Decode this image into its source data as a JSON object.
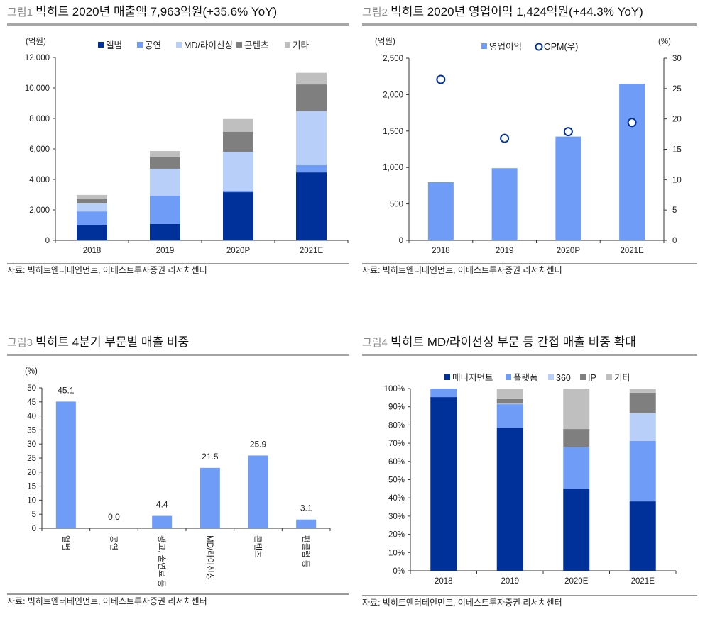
{
  "source_note": "자료: 빅히트엔터테인먼트, 이베스트투자증권 리서치센터",
  "colors": {
    "album": "#00309a",
    "concert": "#6f9cf7",
    "md": "#b8cffa",
    "content": "#7f7f7f",
    "etc": "#bfbfbf",
    "bar": "#6f9cf7",
    "opm": "#00309a"
  },
  "chart_data": [
    {
      "type": "bar",
      "stacked": true,
      "fig_label": "그림1",
      "title": "빅히트 2020년 매출액 7,963억원(+35.6% YoY)",
      "ylabel": "(억원)",
      "ylim": [
        0,
        12000
      ],
      "yticks": [
        "0",
        "2,000",
        "4,000",
        "6,000",
        "8,000",
        "10,000",
        "12,000"
      ],
      "categories": [
        "2018",
        "2019",
        "2020P",
        "2021E"
      ],
      "legend_position": "top",
      "series": [
        {
          "name": "앨범",
          "color": "#00309a",
          "values": [
            1020,
            1070,
            3160,
            4460
          ]
        },
        {
          "name": "공연",
          "color": "#6f9cf7",
          "values": [
            880,
            1860,
            90,
            470
          ]
        },
        {
          "name": "MD/라이선싱",
          "color": "#b8cffa",
          "values": [
            520,
            1770,
            2560,
            3550
          ]
        },
        {
          "name": "콘텐츠",
          "color": "#7f7f7f",
          "values": [
            320,
            750,
            1320,
            1750
          ]
        },
        {
          "name": "기타",
          "color": "#bfbfbf",
          "values": [
            240,
            410,
            833,
            760
          ]
        }
      ]
    },
    {
      "type": "bar+scatter",
      "fig_label": "그림2",
      "title": "빅히트 2020년 영업이익 1,424억원(+44.3% YoY)",
      "ylabel": "(억원)",
      "y2label": "(%)",
      "ylim": [
        0,
        2500
      ],
      "y2lim": [
        0,
        30
      ],
      "yticks": [
        "0",
        "500",
        "1,000",
        "1,500",
        "2,000",
        "2,500"
      ],
      "y2ticks": [
        "0",
        "5",
        "10",
        "15",
        "20",
        "25",
        "30"
      ],
      "categories": [
        "2018",
        "2019",
        "2020P",
        "2021E"
      ],
      "legend_position": "top",
      "series": [
        {
          "name": "영업이익",
          "color": "#6f9cf7",
          "axis": "left",
          "values": [
            798,
            990,
            1424,
            2150
          ]
        },
        {
          "name": "OPM(우)",
          "color": "#00309a",
          "axis": "right",
          "values": [
            26.5,
            16.8,
            17.9,
            19.4
          ]
        }
      ]
    },
    {
      "type": "bar",
      "fig_label": "그림3",
      "title": "빅히트 4분기 부문별 매출 비중",
      "ylabel": "(%)",
      "ylim": [
        0,
        50
      ],
      "yticks": [
        "0",
        "5",
        "10",
        "15",
        "20",
        "25",
        "30",
        "35",
        "40",
        "45",
        "50"
      ],
      "categories": [
        "앨범",
        "공연",
        "광고, 출연료 등",
        "MD/라이선싱",
        "콘텐츠",
        "팬클럽 등"
      ],
      "values": [
        45.1,
        0.0,
        4.4,
        21.5,
        25.9,
        3.1
      ],
      "data_labels": [
        "45.1",
        "0.0",
        "4.4",
        "21.5",
        "25.9",
        "3.1"
      ],
      "color": "#6f9cf7"
    },
    {
      "type": "bar",
      "stacked": true,
      "percent": true,
      "fig_label": "그림4",
      "title": "빅히트 MD/라이선싱 부문 등 간접 매출 비중 확대",
      "ylim": [
        0,
        100
      ],
      "yticks": [
        "0%",
        "10%",
        "20%",
        "30%",
        "40%",
        "50%",
        "60%",
        "70%",
        "80%",
        "90%",
        "100%"
      ],
      "categories": [
        "2018",
        "2019",
        "2020E",
        "2021E"
      ],
      "legend_position": "top",
      "series": [
        {
          "name": "매니지먼트",
          "color": "#00309a",
          "values": [
            95.3,
            78.6,
            45.1,
            38.1
          ]
        },
        {
          "name": "플랫폼",
          "color": "#6f9cf7",
          "values": [
            4.7,
            12.8,
            22.6,
            33.1
          ]
        },
        {
          "name": "360",
          "color": "#b8cffa",
          "values": [
            0,
            0.3,
            0.3,
            15.2
          ]
        },
        {
          "name": "IP",
          "color": "#7f7f7f",
          "values": [
            0,
            2.5,
            9.8,
            11.3
          ]
        },
        {
          "name": "기타",
          "color": "#bfbfbf",
          "values": [
            0,
            5.8,
            22.2,
            2.3
          ]
        }
      ]
    }
  ]
}
